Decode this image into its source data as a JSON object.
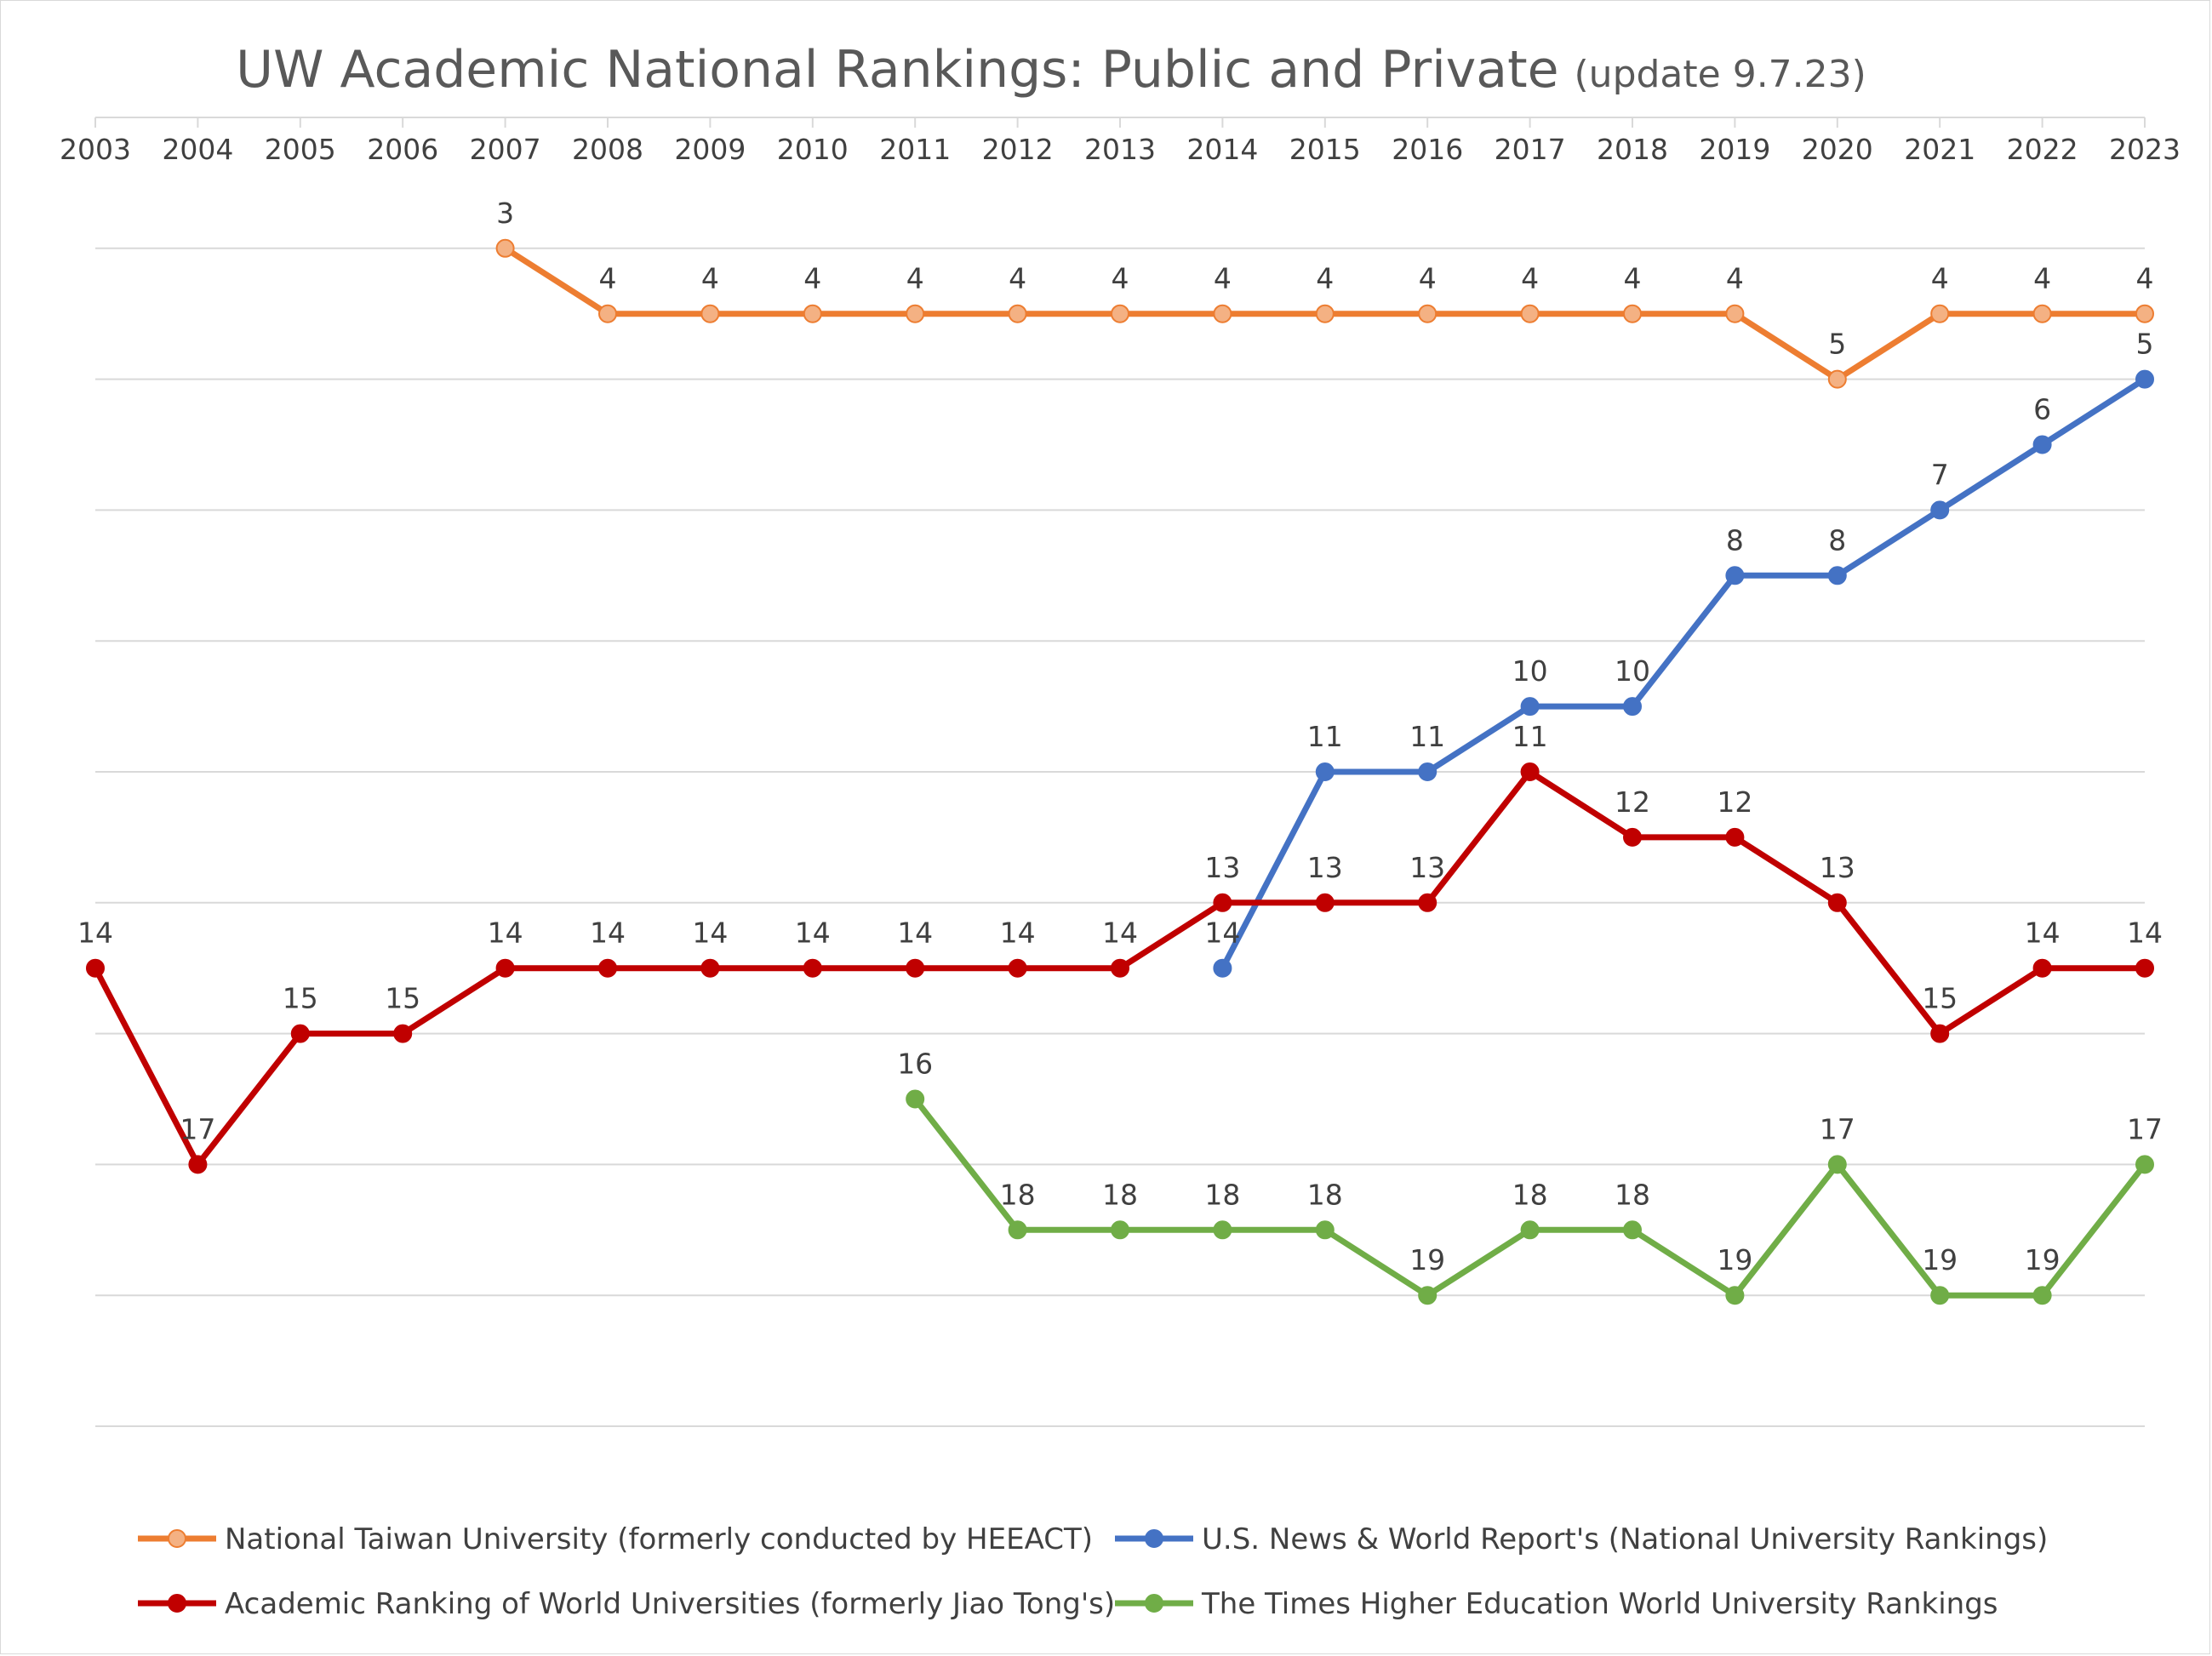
{
  "chart_data": {
    "type": "line",
    "title": "UW Academic National Rankings: Public and Private",
    "subtitle": "(update 9.7.23)",
    "x": [
      "2003",
      "2004",
      "2005",
      "2006",
      "2007",
      "2008",
      "2009",
      "2010",
      "2011",
      "2012",
      "2013",
      "2014",
      "2015",
      "2016",
      "2017",
      "2018",
      "2019",
      "2020",
      "2021",
      "2022",
      "2023"
    ],
    "ylim": [
      1,
      21
    ],
    "y_inverted": true,
    "x_axis_position": "top",
    "y_tick_labels": false,
    "grid": true,
    "legend_position": "bottom",
    "series": [
      {
        "name": "National Taiwan University (formerly conducted by HEEACT)",
        "color": "#ED7D31",
        "marker_color": "#F4B183",
        "values": [
          null,
          null,
          null,
          null,
          3,
          4,
          4,
          4,
          4,
          4,
          4,
          4,
          4,
          4,
          4,
          4,
          4,
          5,
          4,
          4,
          4
        ]
      },
      {
        "name": "U.S. News & World Report's (National University Rankings)",
        "color": "#4472C4",
        "marker_color": "#4472C4",
        "values": [
          null,
          null,
          null,
          null,
          null,
          null,
          null,
          null,
          null,
          null,
          null,
          14,
          11,
          11,
          10,
          10,
          8,
          8,
          7,
          6,
          5
        ]
      },
      {
        "name": "Academic Ranking of World Universities (formerly Jiao Tong's)",
        "color": "#C00000",
        "marker_color": "#C00000",
        "values": [
          14,
          17,
          15,
          15,
          14,
          14,
          14,
          14,
          14,
          14,
          14,
          13,
          13,
          13,
          11,
          12,
          12,
          13,
          15,
          14,
          14
        ]
      },
      {
        "name": "The Times Higher Education World University Rankings",
        "color": "#70AD47",
        "marker_color": "#70AD47",
        "values": [
          null,
          null,
          null,
          null,
          null,
          null,
          null,
          null,
          16,
          18,
          18,
          18,
          18,
          19,
          18,
          18,
          19,
          17,
          19,
          19,
          17
        ]
      }
    ]
  }
}
